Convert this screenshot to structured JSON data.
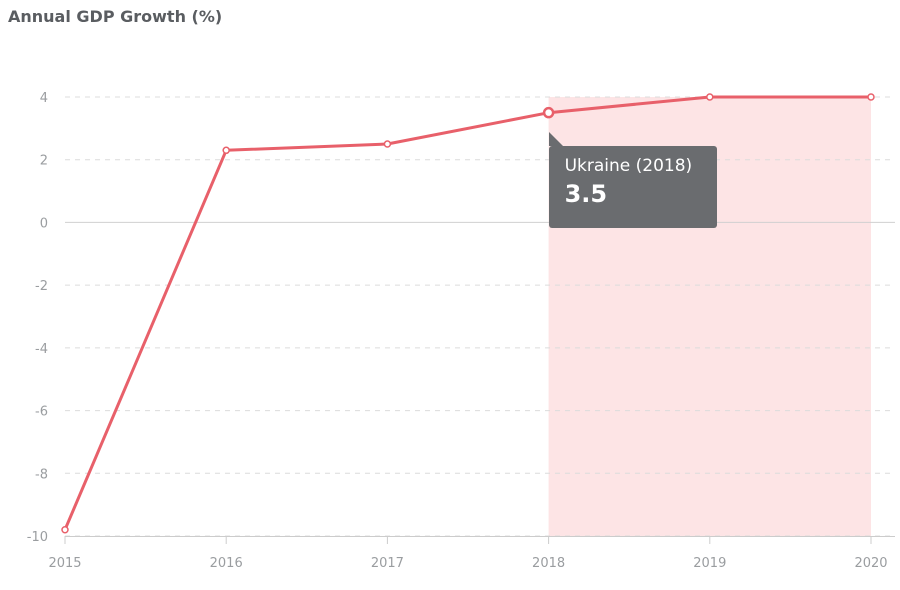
{
  "chart_data": {
    "type": "line",
    "title": "Annual GDP Growth (%)",
    "x": [
      "2015",
      "2016",
      "2017",
      "2018",
      "2019",
      "2020"
    ],
    "series": [
      {
        "values": [
          -9.8,
          2.3,
          2.5,
          3.5,
          4.0,
          4.0
        ]
      }
    ],
    "yticks": [
      "4",
      "2",
      "0",
      "-2",
      "-4",
      "-6",
      "-8",
      "-10"
    ],
    "ylim": [
      -10,
      4
    ],
    "grid": true,
    "highlight_range": [
      "2018",
      "2020"
    ],
    "tooltip": {
      "label": "Ukraine (2018)",
      "value": "3.5"
    },
    "colors": {
      "line": "#e8606a",
      "highlight": "#fde4e5",
      "grid": "#dcdcdc",
      "tooltip_bg": "#6a6c6f"
    }
  }
}
